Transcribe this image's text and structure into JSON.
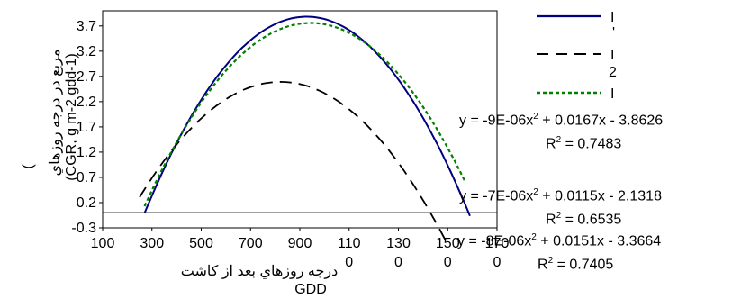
{
  "chart_data": {
    "type": "line",
    "x_ticks": [
      "100",
      "300",
      "500",
      "700",
      "900",
      "110",
      "130",
      "150",
      "170"
    ],
    "x_tick_values": [
      100,
      300,
      500,
      700,
      900,
      1100,
      1300,
      1500,
      1700
    ],
    "y_ticks": [
      "-0.3",
      "0.2",
      "0.7",
      "1.2",
      "1.7",
      "2.2",
      "2.7",
      "3.2",
      "3.7"
    ],
    "y_tick_values": [
      -0.3,
      0.2,
      0.7,
      1.2,
      1.7,
      2.2,
      2.7,
      3.2,
      3.7
    ],
    "xlim": [
      100,
      1700
    ],
    "ylim": [
      -0.3,
      4.0
    ],
    "xlabel": "GDD",
    "xlabel_persian": "درجه روزهاي بعد از كاشت",
    "ylabel_persian": "مربع در درجه روزهاي",
    "ylabel_units": "(CGR, g m-2 gdd-1)",
    "x_tick_overflow": [
      "0",
      "0",
      "0",
      "0"
    ],
    "series": [
      {
        "color": "#000080",
        "dash": "solid",
        "legend_label": "I",
        "coef": [
          -9e-06,
          0.0167,
          -3.8626
        ],
        "x_start": 270,
        "x_end": 1590
      },
      {
        "color": "#000000",
        "dash": "long-dash",
        "legend_label": "I",
        "coef": [
          -7e-06,
          0.0115,
          -2.1318
        ],
        "x_start": 250,
        "x_end": 1500
      },
      {
        "color": "#008000",
        "dash": "dotted",
        "legend_label": "I",
        "coef": [
          -8e-06,
          0.0151,
          -3.3664
        ],
        "x_start": 270,
        "x_end": 1570
      }
    ],
    "equations": [
      {
        "line": "y = -9E-06x",
        "tail": " + 0.0167x - 3.8626",
        "r2": " = 0.7483"
      },
      {
        "line": "y = -7E-06x",
        "tail": " + 0.0115x - 2.1318",
        "r2": " = 0.6535"
      },
      {
        "line": "y = -8E-06x",
        "tail": " + 0.0151x - 3.3664",
        "r2": " = 0.7405"
      }
    ],
    "legend_tick_marks": [
      "'",
      "2"
    ],
    "grid": false,
    "legend_position": "top-right"
  }
}
